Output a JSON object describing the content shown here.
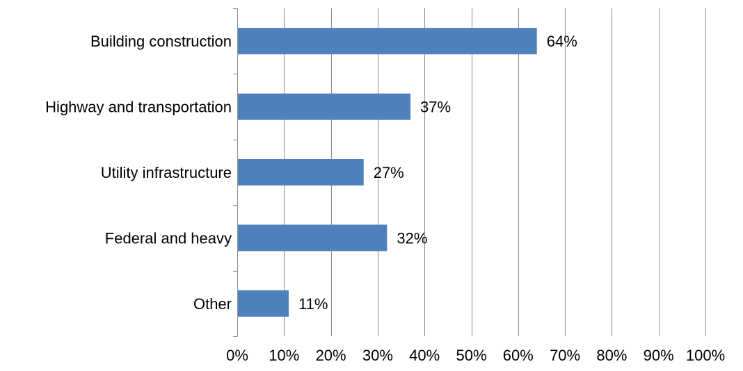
{
  "chart_data": {
    "type": "bar",
    "orientation": "horizontal",
    "categories": [
      "Building construction",
      "Highway and transportation",
      "Utility infrastructure",
      "Federal and heavy",
      "Other"
    ],
    "values": [
      64,
      37,
      27,
      32,
      11
    ],
    "data_labels": [
      "64%",
      "37%",
      "27%",
      "32%",
      "11%"
    ],
    "x_ticks": [
      "0%",
      "10%",
      "20%",
      "30%",
      "40%",
      "50%",
      "60%",
      "70%",
      "80%",
      "90%",
      "100%"
    ],
    "xlim": [
      0,
      100
    ],
    "unit": "%",
    "bar_color": "#4F81BD",
    "grid": "vertical",
    "legend": "none",
    "title": "",
    "xlabel": "",
    "ylabel": ""
  }
}
